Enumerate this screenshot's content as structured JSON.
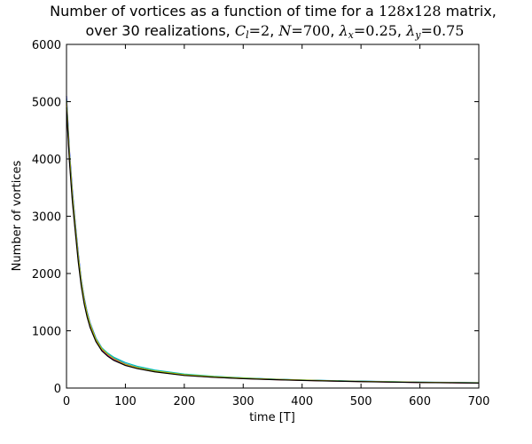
{
  "chart_data": {
    "type": "line",
    "title": {
      "line1_prefix": "Number of vortices as a function of time for a ",
      "line1_matrix": "128",
      "line1_x": "x",
      "line1_matrix2": "128",
      "line1_suffix": " matrix,",
      "line2_prefix": "over 30    realizations, ",
      "cl_label": "C",
      "cl_sub": "l",
      "cl_value": "=2",
      "n_label": "N",
      "n_value": "=700",
      "lx_label": "λ",
      "lx_sub": "x",
      "lx_value": "=0.25",
      "ly_label": "λ",
      "ly_sub": "y",
      "ly_value": "=0.75"
    },
    "xlabel": "time [T]",
    "ylabel": "Number of vortices",
    "xlim": [
      0,
      700
    ],
    "ylim": [
      0,
      6000
    ],
    "xticks": [
      "0",
      "100",
      "200",
      "300",
      "400",
      "500",
      "600",
      "700"
    ],
    "yticks": [
      "0",
      "1000",
      "2000",
      "3000",
      "4000",
      "5000",
      "6000"
    ],
    "grid": false,
    "x": [
      0,
      5,
      10,
      15,
      20,
      25,
      30,
      35,
      40,
      50,
      60,
      70,
      80,
      100,
      120,
      150,
      200,
      250,
      300,
      350,
      400,
      450,
      500,
      550,
      600,
      650,
      700
    ],
    "series": [
      {
        "color": "#0000ff",
        "values": [
          5100,
          4150,
          3450,
          2880,
          2350,
          1900,
          1580,
          1330,
          1140,
          870,
          700,
          600,
          520,
          420,
          360,
          300,
          235,
          200,
          175,
          155,
          140,
          128,
          118,
          110,
          102,
          97,
          92
        ]
      },
      {
        "color": "#008000",
        "values": [
          5000,
          4050,
          3350,
          2800,
          2280,
          1850,
          1530,
          1290,
          1100,
          840,
          675,
          580,
          505,
          410,
          355,
          295,
          230,
          195,
          170,
          152,
          138,
          126,
          116,
          108,
          100,
          95,
          90
        ]
      },
      {
        "color": "#ff0000",
        "values": [
          4950,
          4000,
          3300,
          2760,
          2250,
          1820,
          1500,
          1260,
          1080,
          825,
          660,
          565,
          495,
          400,
          345,
          288,
          225,
          190,
          167,
          149,
          135,
          124,
          114,
          106,
          98,
          93,
          88
        ]
      },
      {
        "color": "#00bfbf",
        "values": [
          5050,
          4100,
          3400,
          2840,
          2320,
          1880,
          1560,
          1320,
          1130,
          865,
          700,
          610,
          540,
          445,
          380,
          315,
          245,
          205,
          178,
          158,
          142,
          130,
          120,
          112,
          104,
          99,
          94
        ]
      },
      {
        "color": "#bf00bf",
        "values": [
          4980,
          4030,
          3330,
          2780,
          2270,
          1840,
          1520,
          1280,
          1095,
          835,
          670,
          575,
          500,
          405,
          350,
          292,
          228,
          193,
          169,
          151,
          137,
          125,
          115,
          107,
          99,
          94,
          89
        ]
      },
      {
        "color": "#bfbf00",
        "values": [
          5020,
          4080,
          3380,
          2820,
          2300,
          1860,
          1545,
          1300,
          1115,
          850,
          685,
          590,
          515,
          415,
          358,
          298,
          233,
          198,
          172,
          154,
          139,
          127,
          117,
          109,
          101,
          96,
          91
        ]
      },
      {
        "color": "#000000",
        "values": [
          4900,
          3950,
          3250,
          2720,
          2200,
          1780,
          1470,
          1240,
          1060,
          810,
          650,
          555,
          485,
          395,
          340,
          283,
          220,
          187,
          164,
          147,
          133,
          122,
          112,
          104,
          97,
          92,
          87
        ]
      }
    ]
  }
}
